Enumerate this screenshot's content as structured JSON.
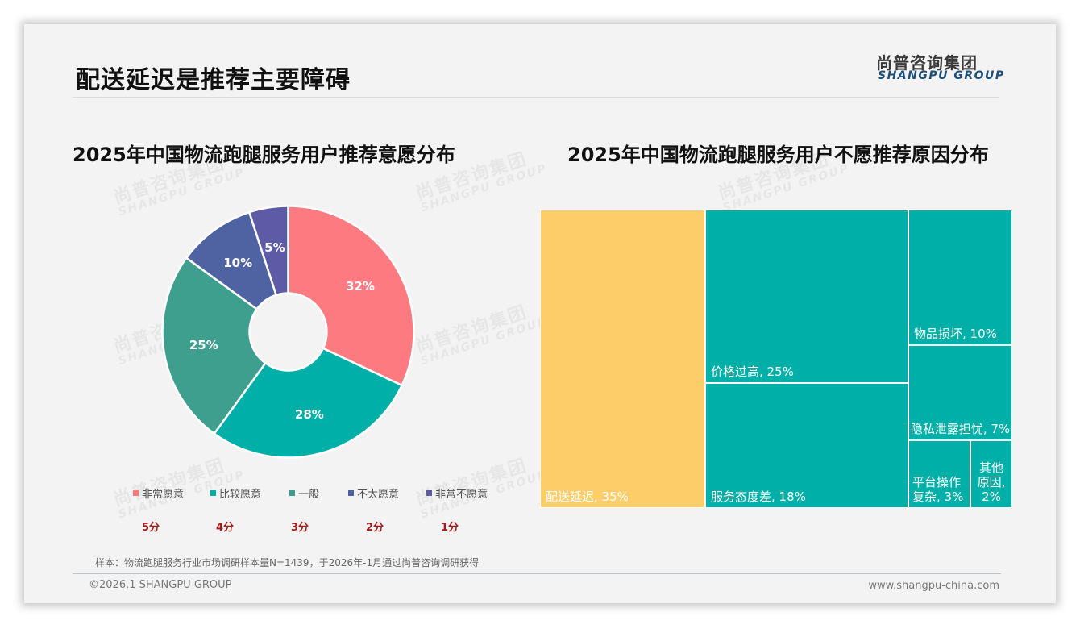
{
  "header": {
    "title": "配送延迟是推荐主要障碍",
    "logo_cn": "尚普咨询集团",
    "logo_en": "SHANGPU GROUP"
  },
  "watermark": {
    "cn": "尚普咨询集团",
    "en": "SHANGPU GROUP"
  },
  "left_chart": {
    "title": "2025年中国物流跑腿服务用户推荐意愿分布"
  },
  "right_chart": {
    "title": "2025年中国物流跑腿服务用户不愿推荐原因分布"
  },
  "chart_data": [
    {
      "type": "pie",
      "variant": "donut",
      "title": "2025年中国物流跑腿服务用户推荐意愿分布",
      "categories": [
        "非常愿意",
        "比较愿意",
        "一般",
        "不太愿意",
        "非常不愿意"
      ],
      "values": [
        32,
        28,
        25,
        10,
        5
      ],
      "value_labels": [
        "32%",
        "28%",
        "25%",
        "10%",
        "5%"
      ],
      "scores": [
        "5分",
        "4分",
        "3分",
        "2分",
        "1分"
      ],
      "colors": [
        "#fd7b80",
        "#00b0a8",
        "#3f9f8f",
        "#4f63a3",
        "#5d5aa6"
      ],
      "legend_position": "bottom"
    },
    {
      "type": "treemap",
      "title": "2025年中国物流跑腿服务用户不愿推荐原因分布",
      "categories": [
        "配送延迟",
        "价格过高",
        "服务态度差",
        "物品损坏",
        "隐私泄露担忧",
        "平台操作复杂",
        "其他原因"
      ],
      "values": [
        35,
        25,
        18,
        10,
        7,
        3,
        2
      ],
      "labels": [
        "配送延迟, 35%",
        "价格过高, 25%",
        "服务态度差, 18%",
        "物品损坏, 10%",
        "隐私泄露担忧, 7%",
        "平台操作复杂, 3%",
        "其他原因, 2%"
      ],
      "colors": [
        "#fdcd6a",
        "#00b0a8",
        "#00b0a8",
        "#00b0a8",
        "#00b0a8",
        "#00b0a8",
        "#00b0a8"
      ]
    }
  ],
  "footer": {
    "source": "样本：物流跑腿服务行业市场调研样本量N=1439，于2026年-1月通过尚普咨询调研获得",
    "copyright": "©2026.1 SHANGPU GROUP",
    "website": "www.shangpu-china.com"
  }
}
